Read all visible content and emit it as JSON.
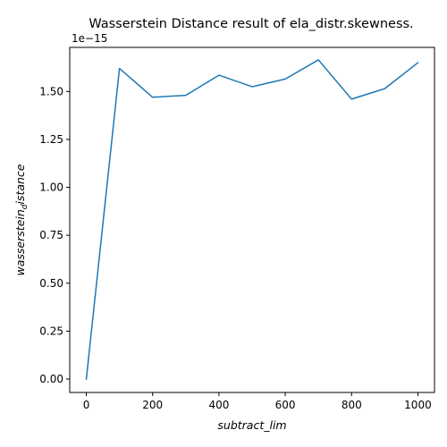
{
  "chart_data": {
    "type": "line",
    "title": "Wasserstein Distance result of ela_distr.skewness.",
    "xlabel": "subtract_lim",
    "ylabel_main": "wasserstein",
    "ylabel_sub": "d",
    "ylabel_rest": "istance",
    "y_offset_text": "1e−15",
    "x": [
      0,
      100,
      200,
      300,
      400,
      500,
      600,
      700,
      800,
      900,
      1000
    ],
    "series": [
      {
        "values": [
          0.0,
          1.62,
          1.47,
          1.48,
          1.585,
          1.525,
          1.565,
          1.665,
          1.46,
          1.515,
          1.65
        ],
        "color": "#1f77b4"
      }
    ],
    "xlim": [
      -50,
      1050
    ],
    "ylim": [
      -0.07,
      1.73
    ],
    "xticks": [
      0,
      200,
      400,
      600,
      800,
      1000
    ],
    "xtick_labels": [
      "0",
      "200",
      "400",
      "600",
      "800",
      "1000"
    ],
    "yticks": [
      0.0,
      0.25,
      0.5,
      0.75,
      1.0,
      1.25,
      1.5
    ],
    "ytick_labels": [
      "0.00",
      "0.25",
      "0.50",
      "0.75",
      "1.00",
      "1.25",
      "1.50"
    ],
    "grid": false
  }
}
